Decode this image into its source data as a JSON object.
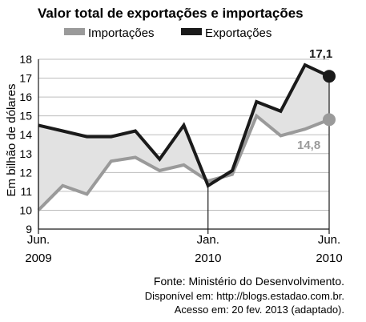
{
  "chart_data": {
    "type": "line",
    "title": "Valor total de exportações e importações",
    "ylabel": "Em bilhão de dólares",
    "ylim": [
      9,
      18
    ],
    "yticks": [
      "9",
      "10",
      "11",
      "12",
      "13",
      "14",
      "15",
      "16",
      "17",
      "18"
    ],
    "x_tick_labels": [
      {
        "month": "Jun.",
        "year": "2009",
        "index": 0
      },
      {
        "month": "Jan.",
        "year": "2010",
        "index": 7
      },
      {
        "month": "Jun.",
        "year": "2010",
        "index": 12
      }
    ],
    "series": [
      {
        "name": "Importações",
        "color": "#9a9a9a",
        "values": [
          10.0,
          11.3,
          10.85,
          12.6,
          12.8,
          12.1,
          12.4,
          11.55,
          11.9,
          15.0,
          13.95,
          14.3,
          14.8
        ]
      },
      {
        "name": "Exportações",
        "color": "#1a1a1a",
        "values": [
          14.5,
          14.2,
          13.9,
          13.9,
          14.2,
          12.7,
          14.5,
          11.3,
          12.1,
          15.75,
          15.25,
          17.7,
          17.1
        ]
      }
    ],
    "data_labels": {
      "exportacoes_last": "17,1",
      "importacoes_last": "14,8"
    },
    "shaded_area_color": "#e2e2e2",
    "grid": true,
    "legend_position": "top"
  },
  "source": {
    "line1": "Fonte: Ministério do Desenvolvimento.",
    "line2": "Disponível em: http://blogs.estadao.com.br.",
    "line3": "Acesso em: 20 fev. 2013 (adaptado)."
  }
}
